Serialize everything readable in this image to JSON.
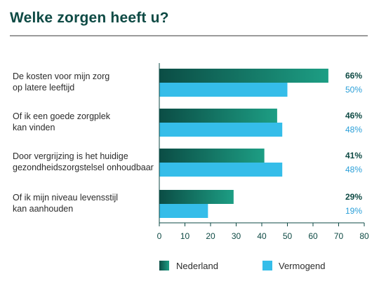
{
  "title": "Welke zorgen heeft u?",
  "colors": {
    "title": "#0e4a44",
    "nederland_dark": "#0b4d45",
    "nederland_light": "#1d9e84",
    "vermogend": "#35bde9",
    "axis": "#0e4a44"
  },
  "chart_data": {
    "type": "bar",
    "orientation": "horizontal",
    "categories": [
      [
        "De kosten voor mijn zorg",
        "op latere leeftijd"
      ],
      [
        "Of ik een goede zorgplek",
        "kan vinden"
      ],
      [
        "Door vergrijzing is het huidige",
        "gezondheidszorgstelsel onhoudbaar"
      ],
      [
        "Of ik mijn niveau levensstijl",
        "kan aanhouden"
      ]
    ],
    "series": [
      {
        "name": "Nederland",
        "values": [
          66,
          46,
          41,
          29
        ],
        "labels": [
          "66%",
          "46%",
          "41%",
          "29%"
        ]
      },
      {
        "name": "Vermogend",
        "values": [
          50,
          48,
          48,
          19
        ],
        "labels": [
          "50%",
          "48%",
          "48%",
          "19%"
        ]
      }
    ],
    "xlim": [
      0,
      80
    ],
    "xticks": [
      "0",
      "10",
      "20",
      "30",
      "40",
      "50",
      "60",
      "70",
      "80"
    ],
    "legend_position": "bottom",
    "grid": false
  }
}
